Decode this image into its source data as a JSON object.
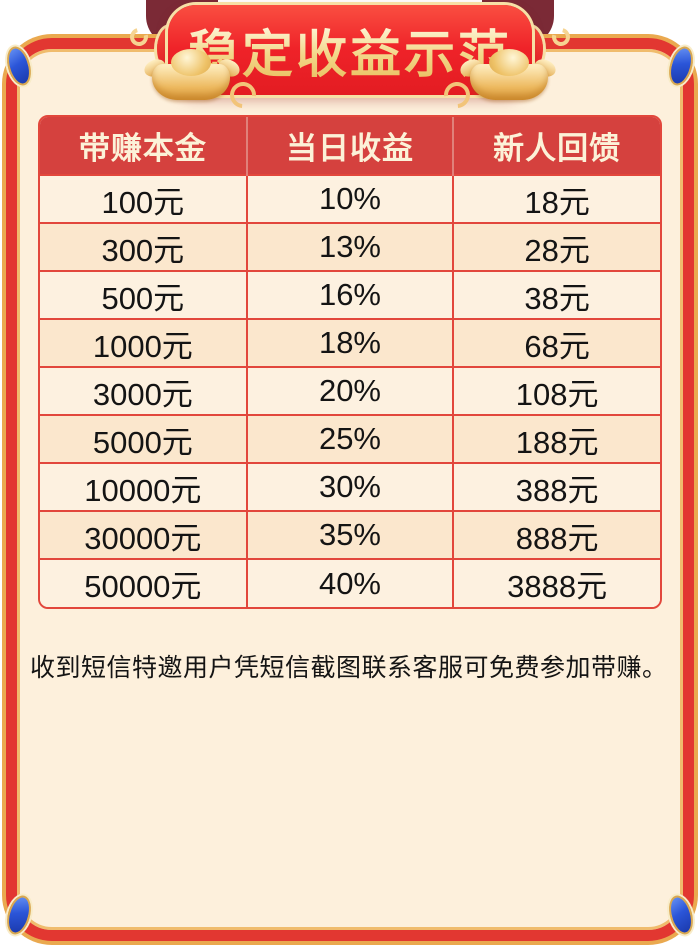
{
  "banner": {
    "title": "稳定收益示范"
  },
  "table": {
    "headers": [
      "带赚本金",
      "当日收益",
      "新人回馈"
    ],
    "rows": [
      {
        "principal": "100元",
        "daily_rate": "10%",
        "newcomer_bonus": "18元"
      },
      {
        "principal": "300元",
        "daily_rate": "13%",
        "newcomer_bonus": "28元"
      },
      {
        "principal": "500元",
        "daily_rate": "16%",
        "newcomer_bonus": "38元"
      },
      {
        "principal": "1000元",
        "daily_rate": "18%",
        "newcomer_bonus": "68元"
      },
      {
        "principal": "3000元",
        "daily_rate": "20%",
        "newcomer_bonus": "108元"
      },
      {
        "principal": "5000元",
        "daily_rate": "25%",
        "newcomer_bonus": "188元"
      },
      {
        "principal": "10000元",
        "daily_rate": "30%",
        "newcomer_bonus": "388元"
      },
      {
        "principal": "30000元",
        "daily_rate": "35%",
        "newcomer_bonus": "888元"
      },
      {
        "principal": "50000元",
        "daily_rate": "40%",
        "newcomer_bonus": "3888元"
      }
    ]
  },
  "note": "收到短信特邀用户凭短信截图联系客服可免费参加带赚。",
  "colors": {
    "banner_red": "#ee2328",
    "banner_trim_gold": "#f7e0a6",
    "title_gold": "#f3d88b",
    "frame_red": "#e23731",
    "frame_gold": "#eaa94f",
    "panel_cream": "#fdf0dc",
    "header_red": "#d5413e",
    "header_text": "#fcf2d8",
    "row_light": "#fdf1e0",
    "row_dark": "#fbe7cd",
    "grid_red": "#e2473c",
    "gem_blue": "#2b55d8",
    "ribbon_maroon": "#7b2a36",
    "body_text": "#141414"
  }
}
